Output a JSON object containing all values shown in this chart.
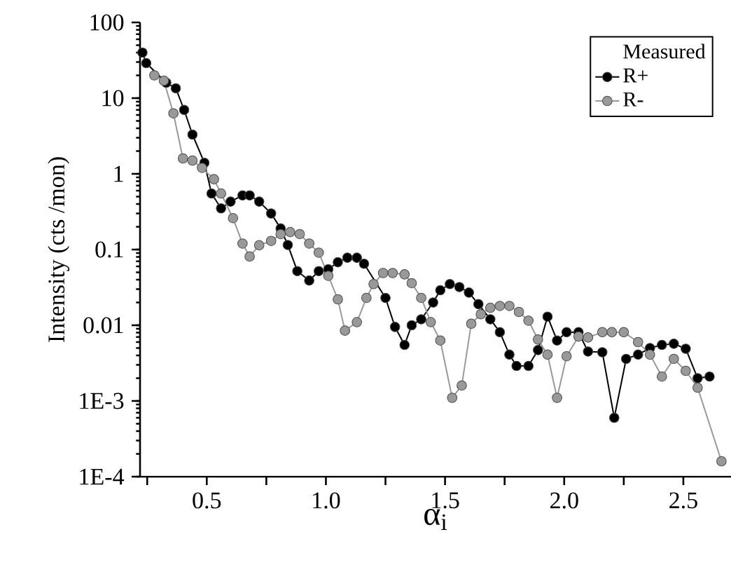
{
  "chart_data": {
    "type": "line",
    "xlabel": "α$_{i}$",
    "ylabel": "Intensity (cts /mon)",
    "legend_title": "Measured",
    "log": "y",
    "legend": "top right",
    "marker": "circle",
    "line_style": "solid",
    "xlim": [
      0.22,
      2.7
    ],
    "ylim": [
      0.0001,
      100
    ],
    "xticks": [
      {
        "value": 0.25,
        "label": null
      },
      0.5,
      {
        "value": 0.75,
        "label": null
      },
      {
        "value": 1,
        "label": "1.0"
      },
      {
        "value": 1.25,
        "label": null
      },
      1.5,
      {
        "value": 1.75,
        "label": null
      },
      {
        "value": 2,
        "label": "2.0"
      },
      {
        "value": 2.25,
        "label": null
      },
      2.5
    ],
    "yticks": [
      {
        "value": 0.0001,
        "label": "1E-4"
      },
      {
        "value": 0.001,
        "label": "1E-3"
      },
      0.01,
      0.1,
      1,
      10,
      100
    ],
    "series": [
      {
        "name": "R+",
        "color": "#000000",
        "x": [
          0.23,
          0.246,
          0.33,
          0.37,
          0.405,
          0.44,
          0.49,
          0.52,
          0.56,
          0.6,
          0.65,
          0.68,
          0.72,
          0.77,
          0.81,
          0.84,
          0.88,
          0.93,
          0.97,
          1.01,
          1.05,
          1.09,
          1.13,
          1.16,
          1.25,
          1.29,
          1.33,
          1.36,
          1.4,
          1.45,
          1.48,
          1.52,
          1.56,
          1.6,
          1.64,
          1.69,
          1.73,
          1.77,
          1.8,
          1.85,
          1.89,
          1.93,
          1.97,
          2.01,
          2.06,
          2.1,
          2.16,
          2.21,
          2.26,
          2.31,
          2.36,
          2.41,
          2.46,
          2.51,
          2.56,
          2.61
        ],
        "values": [
          40,
          29,
          16,
          13.5,
          7,
          3.3,
          1.4,
          0.55,
          0.35,
          0.43,
          0.52,
          0.52,
          0.43,
          0.3,
          0.19,
          0.115,
          0.052,
          0.039,
          0.052,
          0.055,
          0.068,
          0.078,
          0.078,
          0.065,
          0.023,
          0.0095,
          0.0055,
          0.01,
          0.012,
          0.02,
          0.029,
          0.035,
          0.032,
          0.027,
          0.019,
          0.012,
          0.0081,
          0.0041,
          0.0029,
          0.0029,
          0.0047,
          0.013,
          0.0063,
          0.0081,
          0.0081,
          0.0045,
          0.0044,
          0.0006,
          0.0036,
          0.0041,
          0.005,
          0.0055,
          0.0057,
          0.0049,
          0.002,
          0.0021
        ]
      },
      {
        "name": "R-",
        "color": "#999999",
        "x": [
          0.28,
          0.32,
          0.36,
          0.4,
          0.44,
          0.48,
          0.53,
          0.56,
          0.61,
          0.65,
          0.68,
          0.72,
          0.77,
          0.81,
          0.85,
          0.89,
          0.93,
          0.97,
          1.01,
          1.05,
          1.08,
          1.13,
          1.17,
          1.2,
          1.24,
          1.28,
          1.33,
          1.36,
          1.4,
          1.44,
          1.48,
          1.53,
          1.57,
          1.61,
          1.65,
          1.69,
          1.73,
          1.77,
          1.81,
          1.85,
          1.89,
          1.93,
          1.97,
          2.01,
          2.06,
          2.1,
          2.16,
          2.2,
          2.25,
          2.31,
          2.36,
          2.41,
          2.46,
          2.51,
          2.56,
          2.66
        ],
        "values": [
          20,
          17,
          6.3,
          1.6,
          1.5,
          1.2,
          0.85,
          0.55,
          0.26,
          0.12,
          0.081,
          0.114,
          0.13,
          0.16,
          0.17,
          0.16,
          0.12,
          0.091,
          0.045,
          0.022,
          0.0085,
          0.011,
          0.023,
          0.035,
          0.049,
          0.049,
          0.047,
          0.036,
          0.023,
          0.011,
          0.0063,
          0.0011,
          0.0016,
          0.0105,
          0.014,
          0.017,
          0.018,
          0.018,
          0.015,
          0.0115,
          0.0065,
          0.0041,
          0.0011,
          0.0039,
          0.0071,
          0.0069,
          0.0081,
          0.0081,
          0.0081,
          0.006,
          0.0041,
          0.0021,
          0.0036,
          0.0025,
          0.0015,
          0.00016
        ]
      }
    ]
  }
}
